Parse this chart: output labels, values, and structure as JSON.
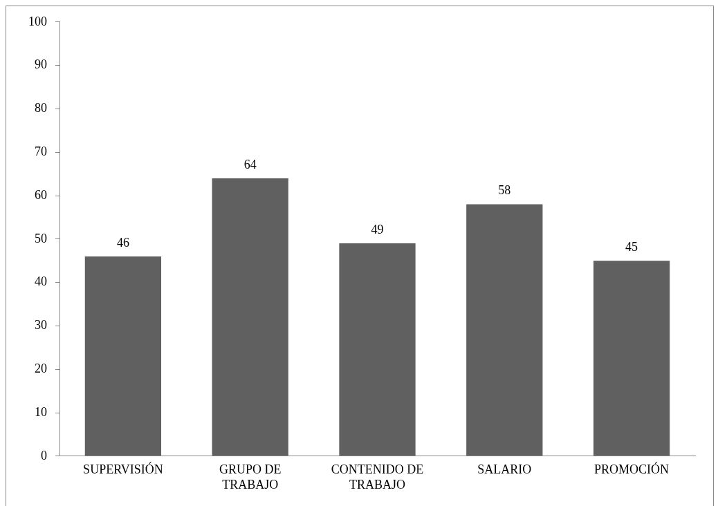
{
  "chart_data": {
    "type": "bar",
    "categories": [
      "SUPERVISIÓN",
      "GRUPO DE TRABAJO",
      "CONTENIDO DE TRABAJO",
      "SALARIO",
      "PROMOCIÓN"
    ],
    "values": [
      46,
      64,
      49,
      58,
      45
    ],
    "color": "#606060",
    "ylim": [
      0,
      100
    ],
    "yticks": [
      0,
      10,
      20,
      30,
      40,
      50,
      60,
      70,
      80,
      90,
      100
    ],
    "data_labels": true,
    "grid": false,
    "legend": false
  }
}
